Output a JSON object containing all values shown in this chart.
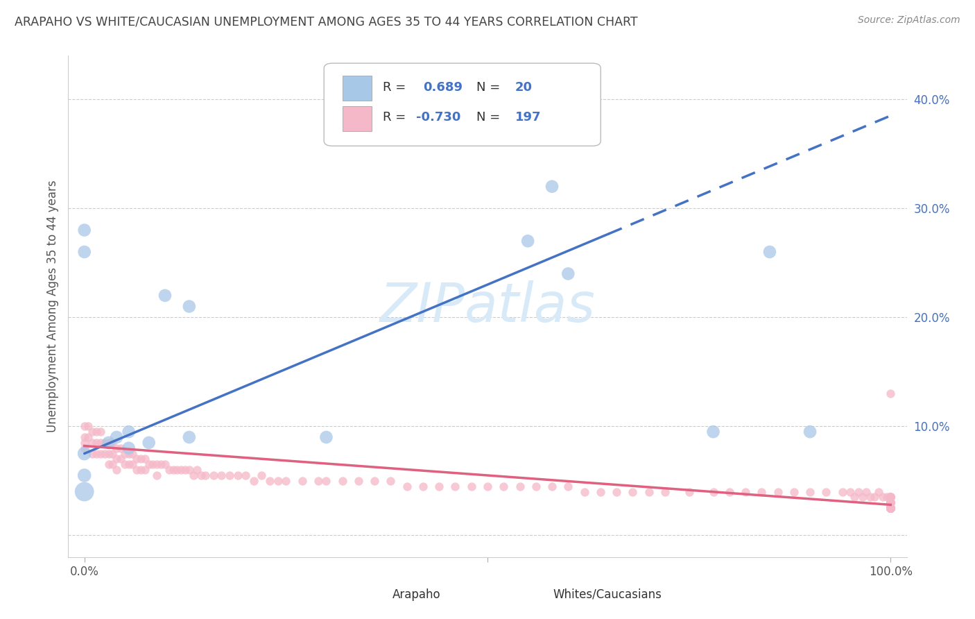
{
  "title": "ARAPAHO VS WHITE/CAUCASIAN UNEMPLOYMENT AMONG AGES 35 TO 44 YEARS CORRELATION CHART",
  "source": "Source: ZipAtlas.com",
  "ylabel": "Unemployment Among Ages 35 to 44 years",
  "xlim": [
    -0.02,
    1.02
  ],
  "ylim": [
    -0.02,
    0.44
  ],
  "blue_R": "0.689",
  "blue_N": "20",
  "pink_R": "-0.730",
  "pink_N": "197",
  "blue_color": "#a8c8e8",
  "pink_color": "#f5b8c8",
  "blue_line_color": "#4472c4",
  "pink_line_color": "#e06080",
  "background_color": "#ffffff",
  "grid_color": "#cccccc",
  "title_color": "#444444",
  "axis_label_color": "#4472c4",
  "tick_label_color": "#4472c4",
  "watermark_color": "#d8eaf8",
  "arapaho_x": [
    0.0,
    0.0,
    0.0,
    0.0,
    0.0,
    0.03,
    0.04,
    0.055,
    0.055,
    0.08,
    0.1,
    0.13,
    0.13,
    0.3,
    0.55,
    0.58,
    0.6,
    0.78,
    0.85,
    0.9
  ],
  "arapaho_y": [
    0.04,
    0.055,
    0.075,
    0.26,
    0.28,
    0.085,
    0.09,
    0.08,
    0.095,
    0.085,
    0.22,
    0.21,
    0.09,
    0.09,
    0.27,
    0.32,
    0.24,
    0.095,
    0.26,
    0.095
  ],
  "arapaho_sizes": [
    400,
    200,
    200,
    180,
    180,
    180,
    180,
    180,
    180,
    180,
    180,
    180,
    180,
    180,
    180,
    180,
    180,
    180,
    180,
    180
  ],
  "white_x": [
    0.0,
    0.0,
    0.0,
    0.0,
    0.005,
    0.005,
    0.01,
    0.01,
    0.01,
    0.015,
    0.015,
    0.015,
    0.02,
    0.02,
    0.02,
    0.025,
    0.025,
    0.03,
    0.03,
    0.03,
    0.035,
    0.035,
    0.035,
    0.04,
    0.04,
    0.04,
    0.045,
    0.045,
    0.05,
    0.05,
    0.055,
    0.055,
    0.06,
    0.06,
    0.065,
    0.065,
    0.07,
    0.07,
    0.075,
    0.075,
    0.08,
    0.085,
    0.09,
    0.09,
    0.095,
    0.1,
    0.105,
    0.11,
    0.115,
    0.12,
    0.125,
    0.13,
    0.135,
    0.14,
    0.145,
    0.15,
    0.16,
    0.17,
    0.18,
    0.19,
    0.2,
    0.21,
    0.22,
    0.23,
    0.24,
    0.25,
    0.27,
    0.29,
    0.3,
    0.32,
    0.34,
    0.36,
    0.38,
    0.4,
    0.42,
    0.44,
    0.46,
    0.48,
    0.5,
    0.52,
    0.54,
    0.56,
    0.58,
    0.6,
    0.62,
    0.64,
    0.66,
    0.68,
    0.7,
    0.72,
    0.75,
    0.78,
    0.8,
    0.82,
    0.84,
    0.86,
    0.88,
    0.9,
    0.92,
    0.94,
    0.95,
    0.955,
    0.96,
    0.965,
    0.97,
    0.975,
    0.98,
    0.985,
    0.99,
    0.995,
    1.0,
    1.0,
    1.0,
    1.0,
    1.0,
    1.0,
    1.0,
    1.0,
    1.0,
    1.0,
    1.0,
    1.0,
    1.0,
    1.0,
    1.0,
    1.0,
    1.0,
    1.0,
    1.0,
    1.0,
    1.0,
    1.0,
    1.0,
    1.0,
    1.0,
    1.0,
    1.0,
    1.0,
    1.0,
    1.0,
    1.0,
    1.0,
    1.0,
    1.0,
    1.0,
    1.0,
    1.0,
    1.0,
    1.0,
    1.0,
    1.0,
    1.0,
    1.0,
    1.0,
    1.0,
    1.0,
    1.0,
    1.0,
    1.0,
    1.0,
    1.0,
    1.0,
    1.0,
    1.0,
    1.0,
    1.0,
    1.0,
    1.0,
    1.0,
    1.0,
    1.0,
    1.0,
    1.0,
    1.0,
    1.0,
    1.0,
    1.0,
    1.0,
    1.0,
    1.0,
    1.0,
    1.0,
    1.0,
    1.0,
    1.0,
    1.0,
    1.0,
    1.0
  ],
  "white_y": [
    0.09,
    0.1,
    0.085,
    0.08,
    0.1,
    0.09,
    0.095,
    0.085,
    0.075,
    0.095,
    0.085,
    0.075,
    0.095,
    0.085,
    0.075,
    0.085,
    0.075,
    0.085,
    0.075,
    0.065,
    0.085,
    0.075,
    0.065,
    0.08,
    0.07,
    0.06,
    0.08,
    0.07,
    0.075,
    0.065,
    0.075,
    0.065,
    0.075,
    0.065,
    0.07,
    0.06,
    0.07,
    0.06,
    0.07,
    0.06,
    0.065,
    0.065,
    0.065,
    0.055,
    0.065,
    0.065,
    0.06,
    0.06,
    0.06,
    0.06,
    0.06,
    0.06,
    0.055,
    0.06,
    0.055,
    0.055,
    0.055,
    0.055,
    0.055,
    0.055,
    0.055,
    0.05,
    0.055,
    0.05,
    0.05,
    0.05,
    0.05,
    0.05,
    0.05,
    0.05,
    0.05,
    0.05,
    0.05,
    0.045,
    0.045,
    0.045,
    0.045,
    0.045,
    0.045,
    0.045,
    0.045,
    0.045,
    0.045,
    0.045,
    0.04,
    0.04,
    0.04,
    0.04,
    0.04,
    0.04,
    0.04,
    0.04,
    0.04,
    0.04,
    0.04,
    0.04,
    0.04,
    0.04,
    0.04,
    0.04,
    0.04,
    0.035,
    0.04,
    0.035,
    0.04,
    0.035,
    0.035,
    0.04,
    0.035,
    0.035,
    0.035,
    0.035,
    0.035,
    0.03,
    0.035,
    0.03,
    0.035,
    0.03,
    0.03,
    0.035,
    0.03,
    0.03,
    0.035,
    0.03,
    0.025,
    0.035,
    0.03,
    0.025,
    0.03,
    0.03,
    0.025,
    0.03,
    0.025,
    0.03,
    0.025,
    0.03,
    0.025,
    0.03,
    0.025,
    0.025,
    0.03,
    0.025,
    0.025,
    0.025,
    0.03,
    0.025,
    0.025,
    0.025,
    0.025,
    0.025,
    0.025,
    0.025,
    0.025,
    0.025,
    0.025,
    0.025,
    0.025,
    0.025,
    0.025,
    0.025,
    0.025,
    0.025,
    0.025,
    0.025,
    0.025,
    0.025,
    0.025,
    0.025,
    0.025,
    0.025,
    0.025,
    0.025,
    0.025,
    0.025,
    0.025,
    0.025,
    0.025,
    0.025,
    0.025,
    0.025,
    0.025,
    0.025,
    0.025,
    0.025,
    0.025,
    0.025,
    0.025,
    0.13
  ],
  "white_sizes": 80,
  "blue_trend_x0": 0.0,
  "blue_trend_y0": 0.075,
  "blue_trend_x1": 1.0,
  "blue_trend_y1": 0.385,
  "blue_trend_solid_end": 0.65,
  "pink_trend_x0": 0.0,
  "pink_trend_y0": 0.082,
  "pink_trend_x1": 1.0,
  "pink_trend_y1": 0.028,
  "ytick_positions": [
    0.0,
    0.1,
    0.2,
    0.3,
    0.4
  ],
  "ytick_labels": [
    "",
    "10.0%",
    "20.0%",
    "30.0%",
    "40.0%"
  ],
  "xtick_positions": [
    0.0,
    0.5,
    1.0
  ],
  "xtick_labels": [
    "0.0%",
    "",
    "100.0%"
  ]
}
